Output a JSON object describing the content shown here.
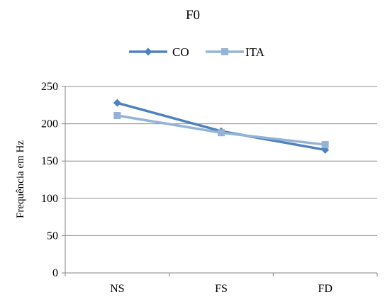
{
  "chart_data": {
    "type": "line",
    "title": "F0",
    "xlabel": "",
    "ylabel": "Frequência em Hz",
    "categories": [
      "NS",
      "FS",
      "FD"
    ],
    "ylim": [
      0,
      250
    ],
    "yticks": [
      0,
      50,
      100,
      150,
      200,
      250
    ],
    "grid": true,
    "legend_position": "top",
    "series": [
      {
        "name": "CO",
        "values": [
          228,
          190,
          165
        ],
        "color": "#4f81bd",
        "marker": "diamond"
      },
      {
        "name": "ITA",
        "values": [
          211,
          188,
          172
        ],
        "color": "#95b3d7",
        "marker": "square"
      }
    ]
  }
}
